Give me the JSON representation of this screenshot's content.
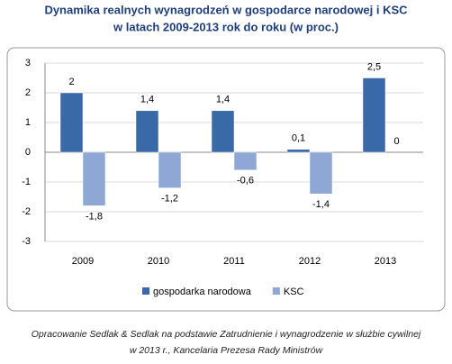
{
  "chart_data": {
    "type": "bar",
    "title": [
      "Dynamika realnych wynagrodzeń w gospodarce narodowej i KSC",
      "w latach 2009-2013 rok do roku (w proc.)"
    ],
    "categories": [
      "2009",
      "2010",
      "2011",
      "2012",
      "2013"
    ],
    "series": [
      {
        "name": "gospodarka narodowa",
        "color": "#3a69a8",
        "values": [
          2,
          1.4,
          1.4,
          0.1,
          2.5
        ],
        "value_labels": [
          "2",
          "1,4",
          "1,4",
          "0,1",
          "2,5"
        ]
      },
      {
        "name": "KSC",
        "color": "#8fa7d4",
        "values": [
          -1.8,
          -1.2,
          -0.6,
          -1.4,
          0
        ],
        "value_labels": [
          "-1,8",
          "-1,2",
          "-0,6",
          "-1,4",
          "0"
        ]
      }
    ],
    "ylim": [
      -3,
      3
    ],
    "yticks": [
      3,
      2,
      1,
      0,
      -1,
      -2,
      -3
    ],
    "grid": true,
    "legend": "bottom",
    "source": [
      "Opracowanie Sedlak & Sedlak na podstawie Zatrudnienie i wynagrodzenie w służbie cywilnej",
      "w 2013 r., Kancelaria Prezesa Rady Ministrów"
    ]
  }
}
